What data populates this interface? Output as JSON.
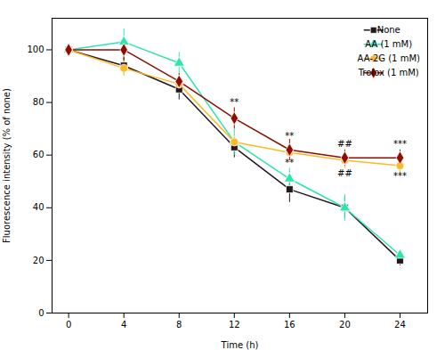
{
  "chart_data": {
    "type": "line",
    "xlabel": "Time (h)",
    "ylabel": "Fluorescence intensity (% of none)",
    "x": [
      0,
      4,
      8,
      12,
      16,
      20,
      24
    ],
    "xlim": [
      -1.2,
      26
    ],
    "ylim": [
      0,
      112
    ],
    "xticks": [
      0,
      4,
      8,
      12,
      16,
      20,
      24
    ],
    "yticks": [
      0,
      20,
      40,
      60,
      80,
      100
    ],
    "grid": false,
    "legend": "upper right",
    "series": [
      {
        "name": "None",
        "marker": "square",
        "values": [
          100,
          94,
          85,
          63,
          47,
          40,
          20
        ],
        "err": [
          2,
          3,
          4,
          4,
          5,
          4,
          2
        ]
      },
      {
        "name": "AA (1 mM)",
        "marker": "triangle",
        "values": [
          100,
          103,
          95,
          65,
          51,
          40,
          22
        ],
        "err": [
          2,
          5,
          4,
          5,
          4,
          5,
          2
        ]
      },
      {
        "name": "AA-2G (1 mM)",
        "marker": "circle",
        "values": [
          100,
          93,
          87,
          65,
          61,
          58,
          56
        ],
        "err": [
          2,
          3,
          3,
          3,
          3,
          3,
          3
        ]
      },
      {
        "name": "Trolox (1 mM)",
        "marker": "diamond",
        "values": [
          100,
          100,
          88,
          74,
          62,
          59,
          59
        ],
        "err": [
          2,
          4,
          3,
          4,
          4,
          3,
          3
        ]
      }
    ],
    "annotations": [
      {
        "text": "**",
        "x": 12,
        "y": 79
      },
      {
        "text": "**",
        "x": 16,
        "y": 66
      },
      {
        "text": "**",
        "x": 16,
        "y": 56
      },
      {
        "text": "##",
        "x": 20,
        "y": 63
      },
      {
        "text": "##",
        "x": 20,
        "y": 52
      },
      {
        "text": "***",
        "x": 24,
        "y": 63
      },
      {
        "text": "***",
        "x": 24,
        "y": 51
      }
    ]
  }
}
